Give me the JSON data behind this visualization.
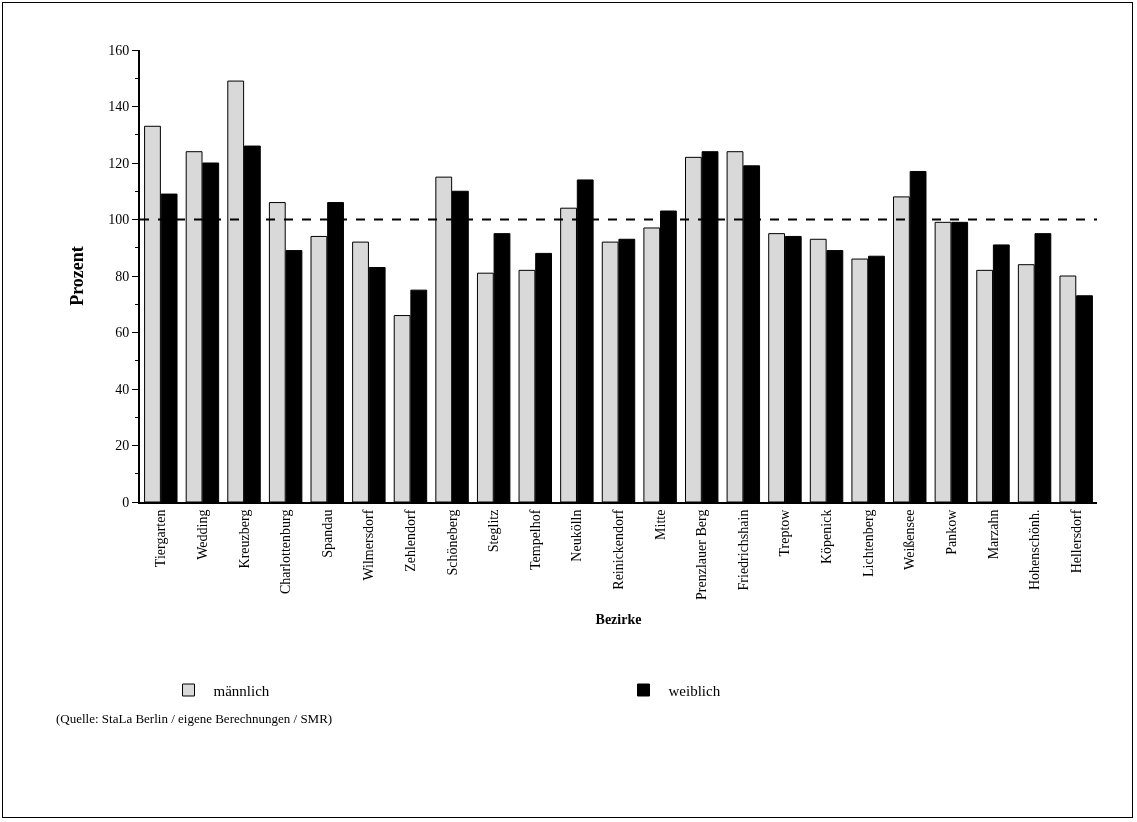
{
  "chart_data": {
    "type": "bar",
    "xlabel": "Bezirke",
    "ylabel": "Prozent",
    "categories": [
      "Tiergarten",
      "Wedding",
      "Kreuzberg",
      "Charlottenburg",
      "Spandau",
      "Wilmersdorf",
      "Zehlendorf",
      "Schöneberg",
      "Steglitz",
      "Tempelhof",
      "Neukölln",
      "Reinickendorf",
      "Mitte",
      "Prenzlauer Berg",
      "Friedrichshain",
      "Treptow",
      "Köpenick",
      "Lichtenberg",
      "Weißensee",
      "Pankow",
      "Marzahn",
      "Hohenschönh.",
      "Hellersdorf"
    ],
    "series": [
      {
        "name": "männlich",
        "color": "#d9d9d9",
        "values": [
          133,
          124,
          149,
          106,
          94,
          92,
          66,
          115,
          81,
          82,
          104,
          92,
          97,
          122,
          124,
          95,
          93,
          86,
          108,
          99,
          82,
          84,
          80
        ]
      },
      {
        "name": "weiblich",
        "color": "#000000",
        "values": [
          109,
          120,
          126,
          89,
          106,
          83,
          75,
          110,
          95,
          88,
          114,
          93,
          103,
          124,
          119,
          94,
          89,
          87,
          117,
          99,
          91,
          95,
          73
        ]
      }
    ],
    "ylim": [
      0,
      160
    ],
    "yticks": [
      0,
      20,
      40,
      60,
      80,
      100,
      120,
      140,
      160
    ],
    "ref_lines": [
      {
        "axis": "y",
        "value": 100,
        "line_style": "dashed",
        "color": "#000000"
      }
    ],
    "grid": false,
    "legend": "bottom",
    "annotations": [
      "(Quelle: StaLa Berlin / eigene Berechnungen / SMR)"
    ]
  }
}
